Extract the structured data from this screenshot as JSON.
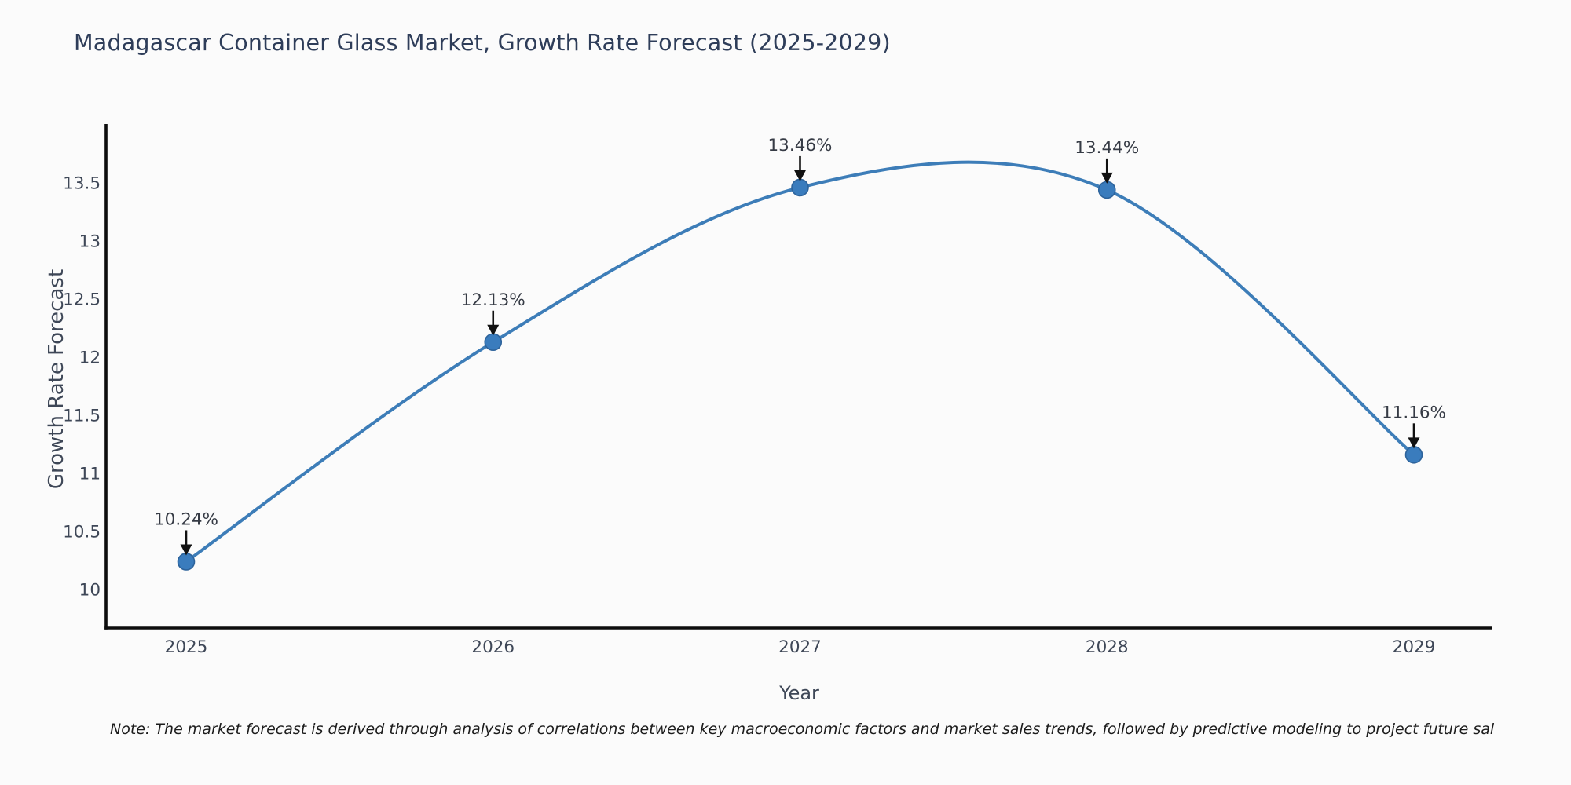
{
  "title": "Madagascar Container Glass Market, Growth Rate Forecast (2025-2029)",
  "note": "Note: The market forecast is derived through analysis of correlations between key macroeconomic factors and market sales trends, followed by predictive modeling to project future sal",
  "chart_data": {
    "type": "line",
    "title": "Madagascar Container Glass Market, Growth Rate Forecast (2025-2029)",
    "x": [
      2025,
      2026,
      2027,
      2028,
      2029
    ],
    "series": [
      {
        "name": "Growth Rate Forecast",
        "values": [
          10.24,
          12.13,
          13.46,
          13.44,
          11.16
        ]
      }
    ],
    "point_labels": [
      "10.24%",
      "12.13%",
      "13.46%",
      "13.44%",
      "11.16%"
    ],
    "xlabel": "Year",
    "ylabel": "Growth Rate Forecast",
    "ylim": [
      9.65,
      14.0
    ],
    "yticks": [
      10,
      10.5,
      11,
      11.5,
      12,
      12.5,
      13,
      13.5
    ],
    "xtick_labels": [
      "2025",
      "2026",
      "2027",
      "2028",
      "2029"
    ],
    "grid": false,
    "legend_position": "none",
    "curve": "smooth-spline",
    "annotation_style": "value label above point with black down arrow",
    "colors": {
      "line": "#3d7db8",
      "marker_fill": "#3a7cbd",
      "marker_edge": "#2d639b",
      "arrow": "#111111",
      "spine": "#0d0d0d",
      "title_text": "#2e3d59",
      "tick_text": "#3e4757"
    }
  }
}
